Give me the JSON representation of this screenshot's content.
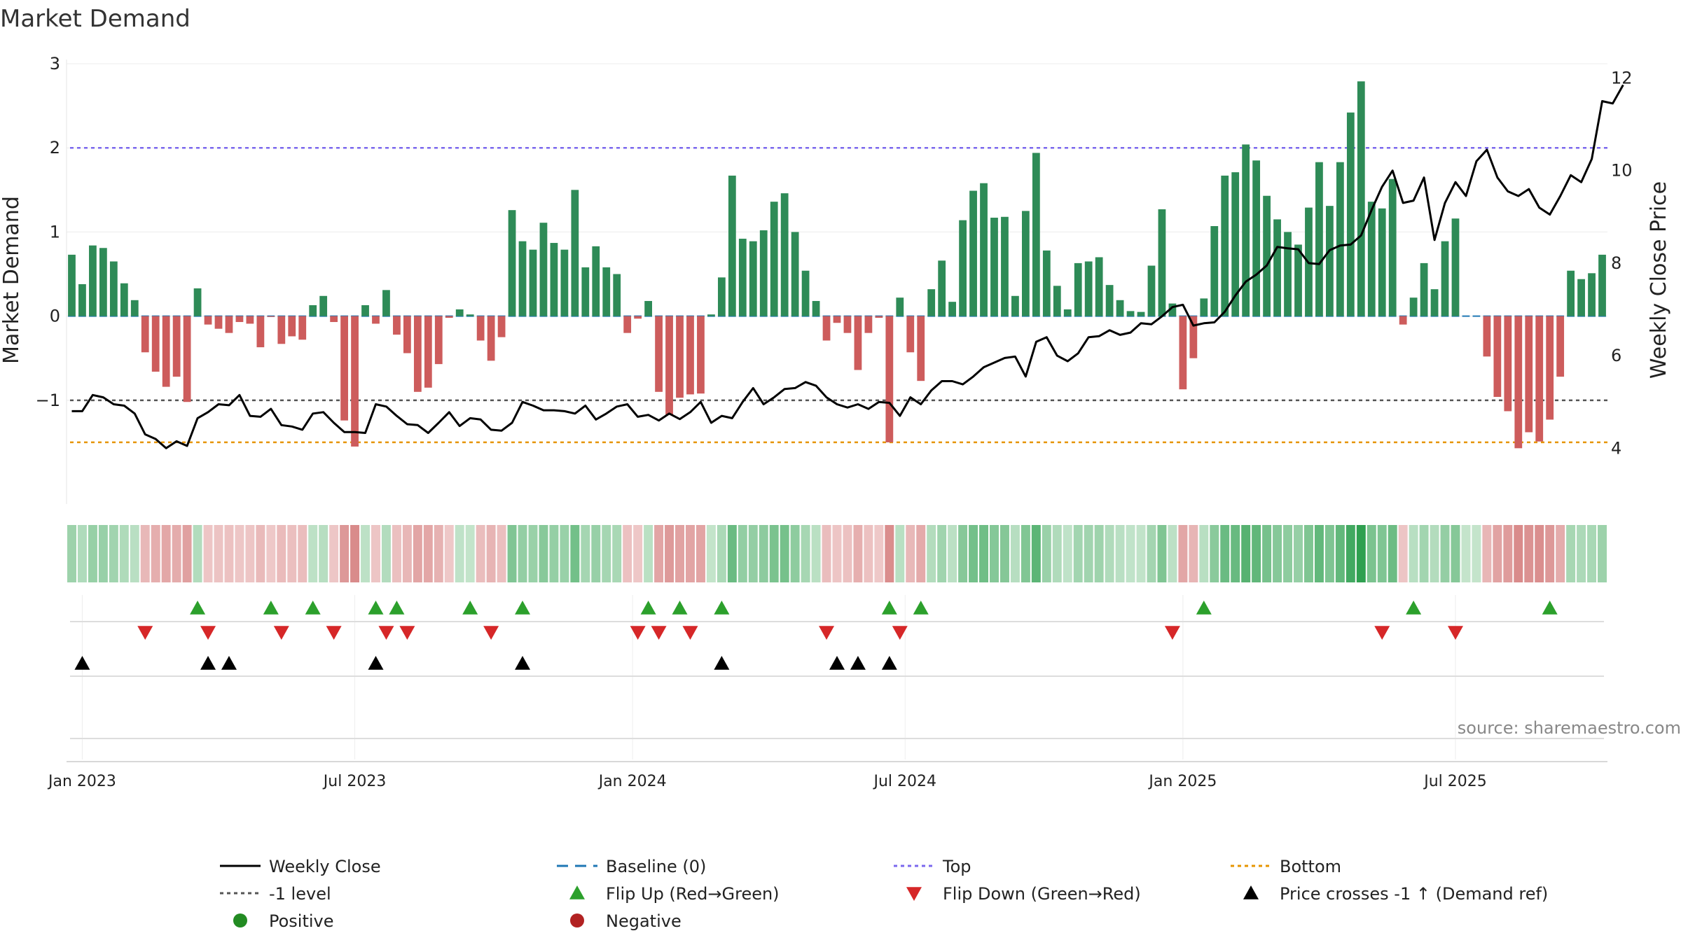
{
  "chart_data": {
    "type": "bar",
    "title": "Market Demand",
    "ylabel": "Market Demand",
    "y2label": "Weekly Close Price",
    "ylim": [
      -1.9,
      3.05
    ],
    "y2lim": [
      3.4,
      12.4
    ],
    "yticks": [
      "3",
      "2",
      "1",
      "0",
      "−1"
    ],
    "y2ticks": [
      "12",
      "10",
      "8",
      "6",
      "4"
    ],
    "xticks": [
      "Jan 2023",
      "Jul 2023",
      "Jan 2024",
      "Jul 2024",
      "Jan 2025",
      "Jul 2025"
    ],
    "reference_lines": {
      "top": 2,
      "bottom": -1.5,
      "minus_one": -1,
      "baseline": 0
    },
    "colors": {
      "positive": "#2e8b57",
      "negative": "#cd5c5c",
      "price": "#000000",
      "baseline": "#1f77b4",
      "top": "#7b68ee",
      "bottom": "#e69500",
      "minus_one": "#555555",
      "flip_up": "#2ca02c",
      "flip_down": "#d62728"
    },
    "demand": [
      0.73,
      0.38,
      0.84,
      0.81,
      0.65,
      0.39,
      0.19,
      -0.43,
      -0.66,
      -0.84,
      -0.72,
      -1.02,
      0.33,
      -0.1,
      -0.15,
      -0.2,
      -0.07,
      -0.09,
      -0.37,
      -0.01,
      -0.33,
      -0.24,
      -0.28,
      0.13,
      0.24,
      -0.07,
      -1.24,
      -1.55,
      0.13,
      -0.09,
      0.31,
      -0.22,
      -0.44,
      -0.9,
      -0.85,
      -0.57,
      -0.02,
      0.08,
      0.02,
      -0.29,
      -0.53,
      -0.25,
      1.26,
      0.89,
      0.79,
      1.11,
      0.87,
      0.79,
      1.5,
      0.58,
      0.83,
      0.58,
      0.5,
      -0.2,
      -0.03,
      0.18,
      -0.9,
      -1.17,
      -0.97,
      -0.93,
      -0.92,
      0.02,
      0.46,
      1.67,
      0.92,
      0.89,
      1.02,
      1.36,
      1.46,
      1.0,
      0.54,
      0.18,
      -0.29,
      -0.08,
      -0.2,
      -0.64,
      -0.2,
      -0.02,
      -1.5,
      0.22,
      -0.43,
      -0.77,
      0.32,
      0.66,
      0.17,
      1.14,
      1.49,
      1.58,
      1.17,
      1.18,
      0.24,
      1.25,
      1.94,
      0.78,
      0.36,
      0.08,
      0.63,
      0.65,
      0.7,
      0.37,
      0.19,
      0.06,
      0.05,
      0.6,
      1.27,
      0.15,
      -0.87,
      -0.5,
      0.21,
      1.07,
      1.67,
      1.71,
      2.04,
      1.85,
      1.43,
      1.15,
      1.0,
      0.85,
      1.29,
      1.83,
      1.31,
      1.83,
      2.42,
      2.79,
      1.36,
      1.28,
      1.63,
      -0.1,
      0.22,
      0.63,
      0.32,
      0.89,
      1.16,
      0.0,
      0.0,
      -0.48,
      -0.96,
      -1.13,
      -1.57,
      -1.38,
      -1.49,
      -1.23,
      -0.72,
      0.54,
      0.44,
      0.51,
      0.73
    ],
    "weekly_close": [
      4.8,
      4.8,
      5.15,
      5.1,
      4.95,
      4.92,
      4.75,
      4.3,
      4.2,
      4.0,
      4.15,
      4.05,
      4.65,
      4.78,
      4.95,
      4.93,
      5.15,
      4.7,
      4.68,
      4.85,
      4.5,
      4.47,
      4.4,
      4.75,
      4.78,
      4.55,
      4.35,
      4.35,
      4.33,
      4.95,
      4.9,
      4.7,
      4.52,
      4.5,
      4.33,
      4.55,
      4.78,
      4.48,
      4.65,
      4.62,
      4.4,
      4.38,
      4.55,
      5.0,
      4.92,
      4.82,
      4.82,
      4.8,
      4.75,
      4.92,
      4.62,
      4.75,
      4.9,
      4.95,
      4.68,
      4.72,
      4.6,
      4.75,
      4.63,
      4.78,
      5.0,
      4.55,
      4.7,
      4.65,
      5.0,
      5.3,
      4.95,
      5.1,
      5.28,
      5.3,
      5.43,
      5.35,
      5.1,
      4.95,
      4.88,
      4.95,
      4.85,
      5.0,
      4.98,
      4.7,
      5.1,
      4.95,
      5.25,
      5.45,
      5.45,
      5.38,
      5.55,
      5.75,
      5.85,
      5.95,
      5.98,
      5.55,
      6.3,
      6.4,
      6.0,
      5.88,
      6.05,
      6.4,
      6.42,
      6.55,
      6.45,
      6.5,
      6.7,
      6.68,
      6.85,
      7.05,
      7.1,
      6.65,
      6.7,
      6.72,
      6.95,
      7.3,
      7.6,
      7.75,
      7.95,
      8.35,
      8.32,
      8.3,
      8.0,
      7.98,
      8.28,
      8.38,
      8.4,
      8.6,
      9.15,
      9.65,
      10.0,
      9.3,
      9.35,
      9.85,
      8.5,
      9.3,
      9.75,
      9.45,
      10.2,
      10.45,
      9.85,
      9.55,
      9.45,
      9.6,
      9.2,
      9.05,
      9.45,
      9.9,
      9.75,
      10.25,
      11.5,
      11.45,
      11.85
    ],
    "heat_strip": "demand intensity per week",
    "flip_up_weeks": [
      12,
      19,
      23,
      29,
      31,
      38,
      43,
      55,
      58,
      62,
      78,
      81,
      108,
      128,
      141
    ],
    "flip_down_weeks": [
      7,
      13,
      20,
      25,
      30,
      32,
      40,
      54,
      56,
      59,
      72,
      79,
      105,
      125,
      132
    ],
    "price_cross_weeks": [
      1,
      13,
      15,
      29,
      43,
      62,
      73,
      75,
      78
    ],
    "legend": [
      {
        "label": "Weekly Close",
        "marker": "line"
      },
      {
        "label": "Baseline (0)",
        "marker": "dash"
      },
      {
        "label": "Top",
        "marker": "dotted"
      },
      {
        "label": "Bottom",
        "marker": "dotted"
      },
      {
        "label": "-1 level",
        "marker": "dotted"
      },
      {
        "label": "Flip Up (Red→Green)",
        "marker": "triangle-up"
      },
      {
        "label": "Flip Down (Green→Red)",
        "marker": "triangle-down"
      },
      {
        "label": "Price crosses -1 ↑ (Demand ref)",
        "marker": "triangle-up"
      },
      {
        "label": "Positive",
        "marker": "circle"
      },
      {
        "label": "Negative",
        "marker": "circle"
      }
    ]
  },
  "source_text": "source: sharemaestro.com"
}
